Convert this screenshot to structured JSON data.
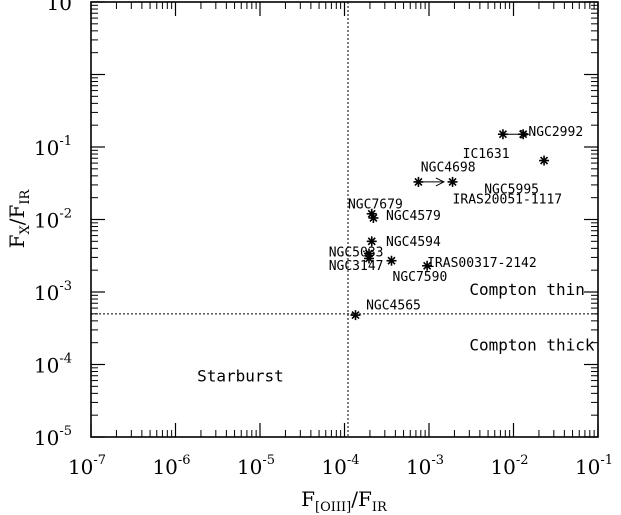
{
  "chart_data": {
    "type": "scatter",
    "x_scale": "log",
    "y_scale": "log",
    "xlim": [
      1e-07,
      0.1
    ],
    "ylim": [
      1e-05,
      10
    ],
    "x_ticks": [
      {
        "base": "10",
        "exp": "-7",
        "value": 1e-07
      },
      {
        "base": "10",
        "exp": "-6",
        "value": 1e-06
      },
      {
        "base": "10",
        "exp": "-5",
        "value": 1e-05
      },
      {
        "base": "10",
        "exp": "-4",
        "value": 0.0001
      },
      {
        "base": "10",
        "exp": "-3",
        "value": 0.001
      },
      {
        "base": "10",
        "exp": "-2",
        "value": 0.01
      },
      {
        "base": "10",
        "exp": "-1",
        "value": 0.1
      }
    ],
    "y_ticks": [
      {
        "base": "10",
        "exp": "-5",
        "value": 1e-05
      },
      {
        "base": "10",
        "exp": "-4",
        "value": 0.0001
      },
      {
        "base": "10",
        "exp": "-3",
        "value": 0.001
      },
      {
        "base": "10",
        "exp": "-2",
        "value": 0.01
      },
      {
        "base": "10",
        "exp": "-1",
        "value": 0.1
      },
      {
        "base": "10",
        "exp": "",
        "value": 10
      }
    ],
    "xlabel": {
      "main": "F",
      "sub1": "[OIII]",
      "mid": "/F",
      "sub2": "IR"
    },
    "ylabel": {
      "main": "F",
      "sub1": "X",
      "mid": "/F",
      "sub2": "IR"
    },
    "divider_x": 0.00011,
    "divider_y": 0.0005,
    "regions": [
      {
        "label": "Compton thin",
        "x": 0.003,
        "y": 0.0011
      },
      {
        "label": "Compton thick",
        "x": 0.003,
        "y": 0.00019
      },
      {
        "label": "Starburst",
        "x": 1.8e-06,
        "y": 7e-05
      }
    ],
    "points": [
      {
        "name": "NGC2992",
        "x": 0.013,
        "y": 0.15,
        "label_x": 0.015,
        "label_y": 0.16
      },
      {
        "name": "IC1631",
        "x": 0.0075,
        "y": 0.15,
        "arrow_to_x": 0.015,
        "label_x": 0.0025,
        "label_y": 0.08
      },
      {
        "name": "NGC5995",
        "x": 0.023,
        "y": 0.065,
        "label_x": 0.0045,
        "label_y": 0.026
      },
      {
        "name": "NGC4698",
        "x": 0.00075,
        "y": 0.033,
        "arrow_to_x": 0.0015,
        "label_x": 0.0008,
        "label_y": 0.052
      },
      {
        "name": "IRAS20051-1117",
        "x": 0.0019,
        "y": 0.033,
        "label_x": 0.0019,
        "label_y": 0.019
      },
      {
        "name": "NGC7679",
        "x": 0.00021,
        "y": 0.012,
        "label_x": 0.00011,
        "label_y": 0.016
      },
      {
        "name": "NGC4579",
        "x": 0.00022,
        "y": 0.0105,
        "label_x": 0.00031,
        "label_y": 0.0112
      },
      {
        "name": "NGC4594",
        "x": 0.00021,
        "y": 0.005,
        "label_x": 0.00031,
        "label_y": 0.0049
      },
      {
        "name": "NGC5033",
        "x": 0.000195,
        "y": 0.0034,
        "label_x": 6.5e-05,
        "label_y": 0.0035
      },
      {
        "name": "NGC3147",
        "x": 0.000195,
        "y": 0.0029,
        "label_x": 6.5e-05,
        "label_y": 0.0023
      },
      {
        "name": "NGC7590",
        "x": 0.00036,
        "y": 0.0027,
        "label_x": 0.00037,
        "label_y": 0.0016
      },
      {
        "name": "IRAS00317-2142",
        "x": 0.00095,
        "y": 0.0023,
        "label_x": 0.00095,
        "label_y": 0.0025
      },
      {
        "name": "NGC4565",
        "x": 0.000135,
        "y": 0.00048,
        "label_x": 0.00018,
        "label_y": 0.00065
      }
    ]
  }
}
